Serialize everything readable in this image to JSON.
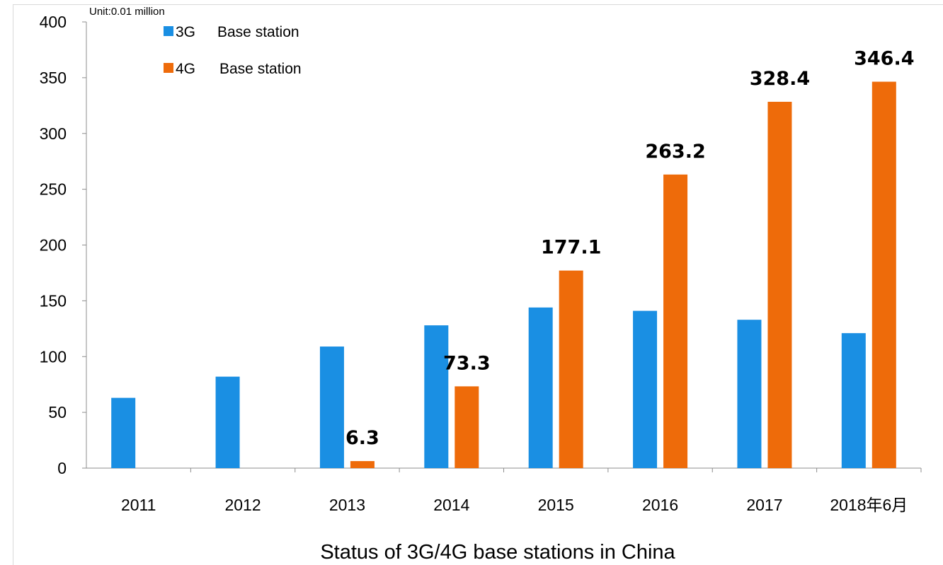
{
  "chart_data": {
    "type": "bar",
    "title": "Status  of 3G/4G base stations in China",
    "unit": "Unit:0.01 million",
    "categories": [
      "2011",
      "2012",
      "2013",
      "2014",
      "2015",
      "2016",
      "2017",
      "2018年6月"
    ],
    "series": [
      {
        "name": "3G  Base station",
        "legend_marker": "3G",
        "legend_text": "Base station",
        "color": "#1a8fe3",
        "values": [
          63,
          82,
          109,
          128,
          144,
          141,
          133,
          121
        ],
        "labels": [
          null,
          null,
          null,
          null,
          null,
          null,
          null,
          null
        ]
      },
      {
        "name": "4G  Base station",
        "legend_marker": "4G",
        "legend_text": "Base station",
        "color": "#ee6b0a",
        "values": [
          null,
          null,
          6.3,
          73.3,
          177.1,
          263.2,
          328.4,
          346.4
        ],
        "labels": [
          null,
          null,
          "6.3",
          "73.3",
          "177.1",
          "263.2",
          "328.4",
          "346.4"
        ]
      }
    ],
    "ylim": [
      0,
      400
    ],
    "yticks": [
      "0",
      "50",
      "100",
      "150",
      "200",
      "250",
      "300",
      "350",
      "400"
    ],
    "grid": false,
    "legend_position": "top-left"
  }
}
